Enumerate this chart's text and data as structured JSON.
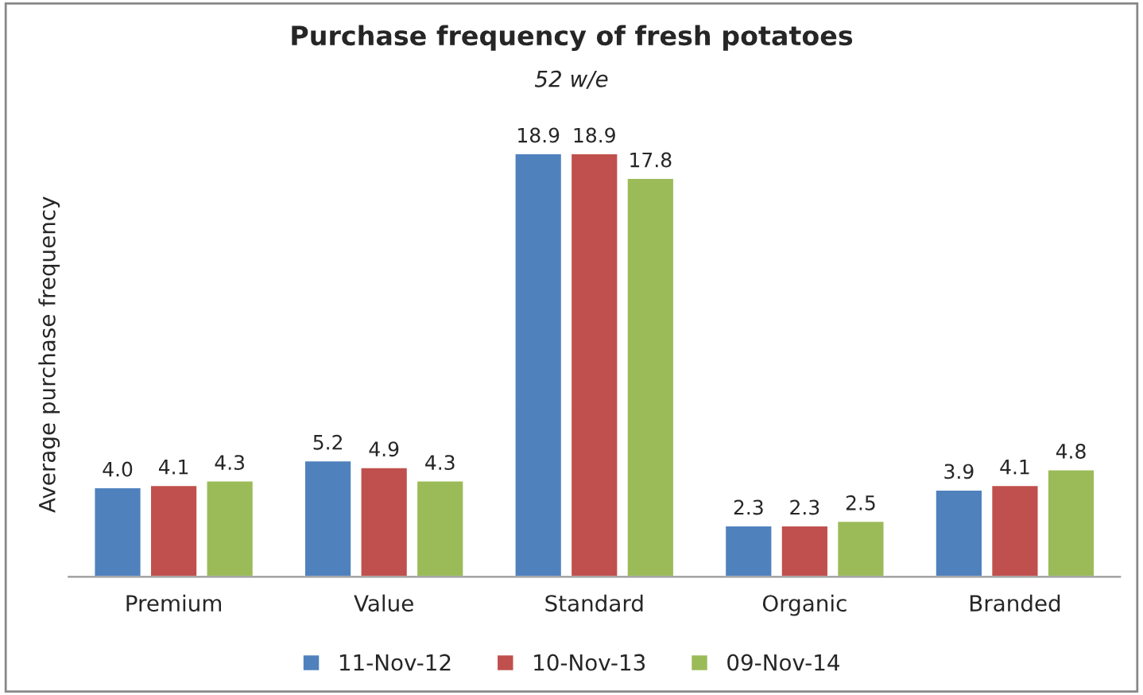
{
  "chart_data": {
    "type": "bar",
    "title": "Purchase frequency of fresh potatoes",
    "subtitle": "52 w/e",
    "ylabel": "Average purchase frequency",
    "categories": [
      "Premium",
      "Value",
      "Standard",
      "Organic",
      "Branded"
    ],
    "series": [
      {
        "name": "11-Nov-12",
        "color": "#4f81bd",
        "values": [
          4.0,
          5.2,
          18.9,
          2.3,
          3.9
        ],
        "value_labels": [
          "4.0",
          "5.2",
          "18.9",
          "2.3",
          "3.9"
        ]
      },
      {
        "name": "10-Nov-13",
        "color": "#c0504d",
        "values": [
          4.1,
          4.9,
          18.9,
          2.3,
          4.1
        ],
        "value_labels": [
          "4.1",
          "4.9",
          "18.9",
          "2.3",
          "4.1"
        ]
      },
      {
        "name": "09-Nov-14",
        "color": "#9bbb59",
        "values": [
          4.3,
          4.3,
          17.8,
          2.5,
          4.8
        ],
        "value_labels": [
          "4.3",
          "4.3",
          "17.8",
          "2.5",
          "4.8"
        ]
      }
    ],
    "legend": "bottom",
    "grid": false
  }
}
